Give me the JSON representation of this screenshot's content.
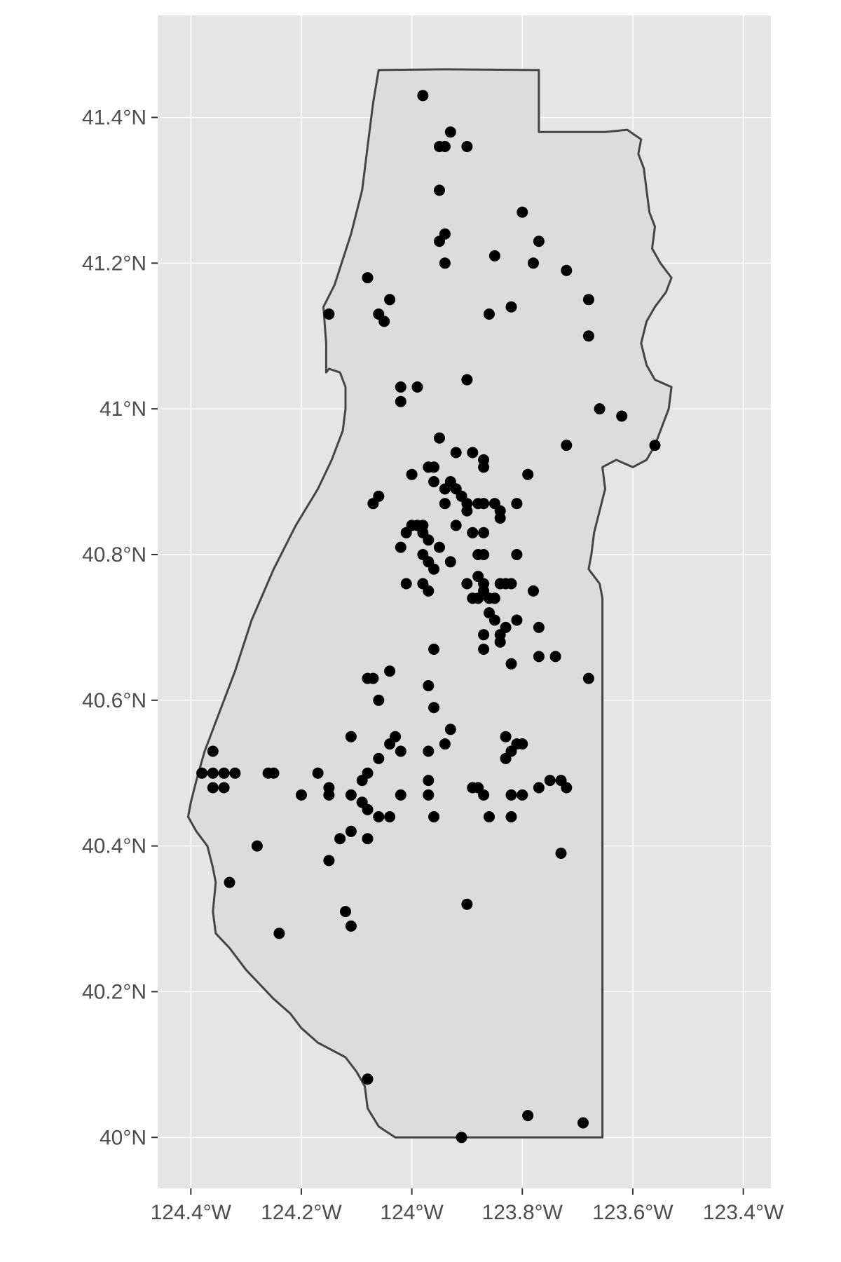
{
  "chart_data": {
    "type": "scatter",
    "title": "",
    "xlabel": "",
    "ylabel": "",
    "xlim": [
      -124.46,
      -123.35
    ],
    "ylim": [
      39.93,
      41.54
    ],
    "grid": true,
    "x_ticks": [
      {
        "value": -124.4,
        "label": "124.4°W"
      },
      {
        "value": -124.2,
        "label": "124.2°W"
      },
      {
        "value": -124.0,
        "label": "124°W"
      },
      {
        "value": -123.8,
        "label": "123.8°W"
      },
      {
        "value": -123.6,
        "label": "123.6°W"
      },
      {
        "value": -123.4,
        "label": "123.4°W"
      }
    ],
    "y_ticks": [
      {
        "value": 40.0,
        "label": "40°N"
      },
      {
        "value": 40.2,
        "label": "40.2°N"
      },
      {
        "value": 40.4,
        "label": "40.4°N"
      },
      {
        "value": 40.6,
        "label": "40.6°N"
      },
      {
        "value": 40.8,
        "label": "40.8°N"
      },
      {
        "value": 41.0,
        "label": "41°N"
      },
      {
        "value": 41.2,
        "label": "41.2°N"
      },
      {
        "value": 41.4,
        "label": "41.4°N"
      }
    ],
    "colors": {
      "panel": "#e5e5e5",
      "grid": "#ffffff",
      "region_fill": "#dcdcdc",
      "region_stroke": "#444444",
      "points": "#000000"
    },
    "boundary": [
      [
        -124.06,
        41.465
      ],
      [
        -123.94,
        41.466
      ],
      [
        -123.77,
        41.465
      ],
      [
        -123.77,
        41.38
      ],
      [
        -123.65,
        41.38
      ],
      [
        -123.61,
        41.383
      ],
      [
        -123.585,
        41.37
      ],
      [
        -123.59,
        41.35
      ],
      [
        -123.58,
        41.33
      ],
      [
        -123.575,
        41.3
      ],
      [
        -123.57,
        41.27
      ],
      [
        -123.56,
        41.25
      ],
      [
        -123.565,
        41.22
      ],
      [
        -123.55,
        41.2
      ],
      [
        -123.53,
        41.18
      ],
      [
        -123.54,
        41.16
      ],
      [
        -123.56,
        41.14
      ],
      [
        -123.575,
        41.12
      ],
      [
        -123.585,
        41.09
      ],
      [
        -123.575,
        41.06
      ],
      [
        -123.56,
        41.04
      ],
      [
        -123.53,
        41.03
      ],
      [
        -123.535,
        41.0
      ],
      [
        -123.545,
        40.98
      ],
      [
        -123.56,
        40.95
      ],
      [
        -123.575,
        40.93
      ],
      [
        -123.6,
        40.92
      ],
      [
        -123.63,
        40.93
      ],
      [
        -123.655,
        40.92
      ],
      [
        -123.65,
        40.89
      ],
      [
        -123.66,
        40.86
      ],
      [
        -123.67,
        40.83
      ],
      [
        -123.675,
        40.8
      ],
      [
        -123.68,
        40.78
      ],
      [
        -123.66,
        40.76
      ],
      [
        -123.655,
        40.74
      ],
      [
        -123.655,
        40.6
      ],
      [
        -123.655,
        40.4
      ],
      [
        -123.655,
        40.2
      ],
      [
        -123.655,
        40.0
      ],
      [
        -124.03,
        40.0
      ],
      [
        -124.06,
        40.015
      ],
      [
        -124.08,
        40.04
      ],
      [
        -124.085,
        40.07
      ],
      [
        -124.1,
        40.09
      ],
      [
        -124.12,
        40.11
      ],
      [
        -124.17,
        40.13
      ],
      [
        -124.2,
        40.15
      ],
      [
        -124.22,
        40.17
      ],
      [
        -124.25,
        40.19
      ],
      [
        -124.3,
        40.23
      ],
      [
        -124.33,
        40.26
      ],
      [
        -124.355,
        40.28
      ],
      [
        -124.36,
        40.31
      ],
      [
        -124.355,
        40.35
      ],
      [
        -124.36,
        40.37
      ],
      [
        -124.37,
        40.4
      ],
      [
        -124.39,
        40.42
      ],
      [
        -124.405,
        40.44
      ],
      [
        -124.4,
        40.46
      ],
      [
        -124.39,
        40.49
      ],
      [
        -124.375,
        40.53
      ],
      [
        -124.35,
        40.58
      ],
      [
        -124.32,
        40.64
      ],
      [
        -124.29,
        40.71
      ],
      [
        -124.25,
        40.78
      ],
      [
        -124.21,
        40.84
      ],
      [
        -124.17,
        40.89
      ],
      [
        -124.145,
        40.93
      ],
      [
        -124.125,
        40.97
      ],
      [
        -124.12,
        41.0
      ],
      [
        -124.12,
        41.03
      ],
      [
        -124.13,
        41.05
      ],
      [
        -124.15,
        41.055
      ],
      [
        -124.155,
        41.05
      ],
      [
        -124.155,
        41.09
      ],
      [
        -124.16,
        41.14
      ],
      [
        -124.14,
        41.17
      ],
      [
        -124.11,
        41.24
      ],
      [
        -124.09,
        41.3
      ],
      [
        -124.08,
        41.36
      ],
      [
        -124.07,
        41.42
      ],
      [
        -124.06,
        41.465
      ]
    ],
    "points": [
      [
        -123.98,
        41.43
      ],
      [
        -123.93,
        41.38
      ],
      [
        -123.94,
        41.36
      ],
      [
        -123.95,
        41.36
      ],
      [
        -123.9,
        41.36
      ],
      [
        -123.95,
        41.3
      ],
      [
        -123.94,
        41.24
      ],
      [
        -123.95,
        41.23
      ],
      [
        -123.94,
        41.2
      ],
      [
        -123.85,
        41.21
      ],
      [
        -123.8,
        41.27
      ],
      [
        -123.77,
        41.23
      ],
      [
        -123.78,
        41.2
      ],
      [
        -123.72,
        41.19
      ],
      [
        -124.08,
        41.18
      ],
      [
        -124.04,
        41.15
      ],
      [
        -124.15,
        41.13
      ],
      [
        -124.06,
        41.13
      ],
      [
        -124.05,
        41.12
      ],
      [
        -123.82,
        41.14
      ],
      [
        -123.86,
        41.13
      ],
      [
        -123.68,
        41.15
      ],
      [
        -123.68,
        41.1
      ],
      [
        -124.02,
        41.03
      ],
      [
        -124.02,
        41.01
      ],
      [
        -123.99,
        41.03
      ],
      [
        -123.9,
        41.04
      ],
      [
        -123.66,
        41.0
      ],
      [
        -123.62,
        40.99
      ],
      [
        -123.56,
        40.95
      ],
      [
        -123.72,
        40.95
      ],
      [
        -123.95,
        40.96
      ],
      [
        -123.92,
        40.94
      ],
      [
        -123.89,
        40.94
      ],
      [
        -123.87,
        40.93
      ],
      [
        -123.87,
        40.92
      ],
      [
        -123.79,
        40.91
      ],
      [
        -123.97,
        40.92
      ],
      [
        -123.96,
        40.92
      ],
      [
        -124.0,
        40.91
      ],
      [
        -123.96,
        40.9
      ],
      [
        -123.93,
        40.9
      ],
      [
        -123.94,
        40.89
      ],
      [
        -123.92,
        40.89
      ],
      [
        -123.91,
        40.88
      ],
      [
        -124.06,
        40.88
      ],
      [
        -124.07,
        40.87
      ],
      [
        -123.94,
        40.87
      ],
      [
        -123.9,
        40.87
      ],
      [
        -123.88,
        40.87
      ],
      [
        -123.87,
        40.87
      ],
      [
        -123.85,
        40.87
      ],
      [
        -123.81,
        40.87
      ],
      [
        -123.9,
        40.86
      ],
      [
        -123.84,
        40.86
      ],
      [
        -123.84,
        40.85
      ],
      [
        -123.92,
        40.84
      ],
      [
        -123.98,
        40.84
      ],
      [
        -123.99,
        40.84
      ],
      [
        -124.0,
        40.84
      ],
      [
        -123.89,
        40.83
      ],
      [
        -123.87,
        40.83
      ],
      [
        -124.01,
        40.83
      ],
      [
        -123.98,
        40.83
      ],
      [
        -124.02,
        40.81
      ],
      [
        -123.97,
        40.82
      ],
      [
        -123.95,
        40.81
      ],
      [
        -123.98,
        40.8
      ],
      [
        -123.88,
        40.8
      ],
      [
        -123.97,
        40.79
      ],
      [
        -123.87,
        40.8
      ],
      [
        -123.81,
        40.8
      ],
      [
        -123.93,
        40.79
      ],
      [
        -123.96,
        40.78
      ],
      [
        -123.88,
        40.77
      ],
      [
        -123.87,
        40.76
      ],
      [
        -123.84,
        40.76
      ],
      [
        -123.83,
        40.76
      ],
      [
        -123.82,
        40.76
      ],
      [
        -124.01,
        40.76
      ],
      [
        -123.98,
        40.76
      ],
      [
        -123.9,
        40.76
      ],
      [
        -123.87,
        40.75
      ],
      [
        -123.97,
        40.75
      ],
      [
        -123.78,
        40.75
      ],
      [
        -123.85,
        40.74
      ],
      [
        -123.86,
        40.74
      ],
      [
        -123.89,
        40.74
      ],
      [
        -123.88,
        40.74
      ],
      [
        -123.86,
        40.72
      ],
      [
        -123.85,
        40.71
      ],
      [
        -123.81,
        40.71
      ],
      [
        -123.77,
        40.7
      ],
      [
        -123.83,
        40.7
      ],
      [
        -123.84,
        40.69
      ],
      [
        -123.87,
        40.69
      ],
      [
        -123.84,
        40.68
      ],
      [
        -123.96,
        40.67
      ],
      [
        -123.87,
        40.67
      ],
      [
        -123.77,
        40.66
      ],
      [
        -123.74,
        40.66
      ],
      [
        -123.82,
        40.65
      ],
      [
        -124.04,
        40.64
      ],
      [
        -123.68,
        40.63
      ],
      [
        -124.08,
        40.63
      ],
      [
        -124.07,
        40.63
      ],
      [
        -123.97,
        40.62
      ],
      [
        -124.06,
        40.6
      ],
      [
        -123.96,
        40.59
      ],
      [
        -124.11,
        40.55
      ],
      [
        -124.03,
        40.55
      ],
      [
        -123.93,
        40.56
      ],
      [
        -123.83,
        40.55
      ],
      [
        -123.8,
        40.54
      ],
      [
        -123.81,
        40.54
      ],
      [
        -124.04,
        40.54
      ],
      [
        -123.94,
        40.54
      ],
      [
        -123.82,
        40.53
      ],
      [
        -124.02,
        40.53
      ],
      [
        -123.97,
        40.53
      ],
      [
        -123.83,
        40.52
      ],
      [
        -124.06,
        40.52
      ],
      [
        -124.36,
        40.53
      ],
      [
        -124.38,
        40.5
      ],
      [
        -124.36,
        40.5
      ],
      [
        -124.34,
        40.5
      ],
      [
        -124.32,
        40.5
      ],
      [
        -124.26,
        40.5
      ],
      [
        -124.25,
        40.5
      ],
      [
        -124.17,
        40.5
      ],
      [
        -124.36,
        40.48
      ],
      [
        -124.34,
        40.48
      ],
      [
        -124.08,
        40.5
      ],
      [
        -124.09,
        40.49
      ],
      [
        -123.97,
        40.49
      ],
      [
        -123.89,
        40.48
      ],
      [
        -123.88,
        40.48
      ],
      [
        -123.75,
        40.49
      ],
      [
        -123.73,
        40.49
      ],
      [
        -123.72,
        40.48
      ],
      [
        -123.77,
        40.48
      ],
      [
        -124.15,
        40.48
      ],
      [
        -124.2,
        40.47
      ],
      [
        -124.15,
        40.47
      ],
      [
        -124.11,
        40.47
      ],
      [
        -124.02,
        40.47
      ],
      [
        -123.97,
        40.47
      ],
      [
        -123.87,
        40.47
      ],
      [
        -123.82,
        40.47
      ],
      [
        -123.8,
        40.47
      ],
      [
        -124.09,
        40.46
      ],
      [
        -124.08,
        40.45
      ],
      [
        -124.06,
        40.44
      ],
      [
        -124.04,
        40.44
      ],
      [
        -123.96,
        40.44
      ],
      [
        -123.86,
        40.44
      ],
      [
        -123.82,
        40.44
      ],
      [
        -124.11,
        40.42
      ],
      [
        -124.13,
        40.41
      ],
      [
        -124.08,
        40.41
      ],
      [
        -124.28,
        40.4
      ],
      [
        -124.15,
        40.38
      ],
      [
        -123.73,
        40.39
      ],
      [
        -124.33,
        40.35
      ],
      [
        -124.12,
        40.31
      ],
      [
        -123.9,
        40.32
      ],
      [
        -124.11,
        40.29
      ],
      [
        -124.24,
        40.28
      ],
      [
        -124.08,
        40.08
      ],
      [
        -123.79,
        40.03
      ],
      [
        -123.69,
        40.02
      ],
      [
        -123.91,
        40.0
      ]
    ]
  }
}
